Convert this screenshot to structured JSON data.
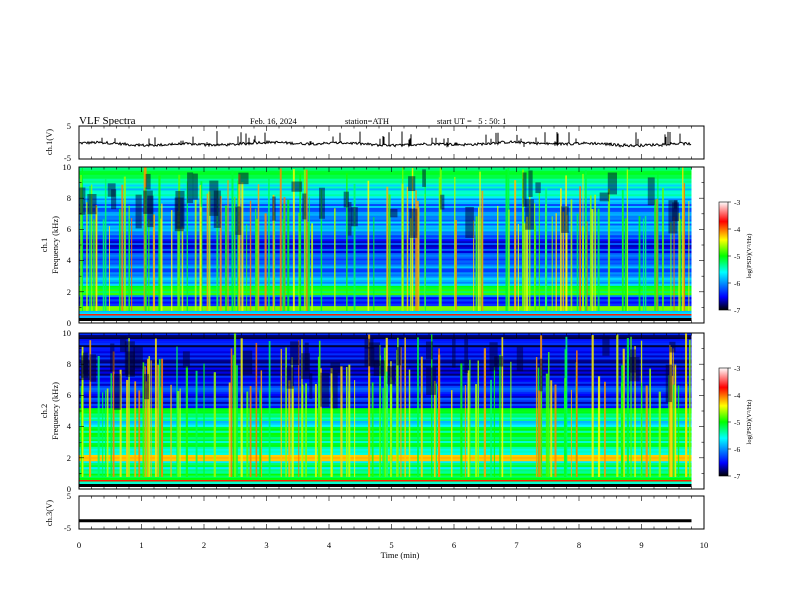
{
  "header": {
    "title": "VLF Spectra",
    "date": "Feb. 16, 2024",
    "station": "station=ATH",
    "start": "start UT =   5 : 50: 1"
  },
  "chart_data": [
    {
      "type": "line",
      "panel": "ch1-waveform",
      "ylabel": "ch.1(V)",
      "ylim": [
        -5,
        5
      ],
      "yticks": [
        "5",
        "-5"
      ],
      "xlim": [
        0,
        10
      ],
      "trace_color": "#000000",
      "x_end": 9.8
    },
    {
      "type": "heatmap",
      "panel": "ch1-spectrogram",
      "ylabel_channel": "ch.1",
      "ylabel": "Frequency (kHz)",
      "ylim": [
        0,
        10
      ],
      "yticks": [
        "0",
        "2",
        "4",
        "6",
        "8",
        "10"
      ],
      "xlim": [
        0,
        10
      ],
      "x_end": 9.8,
      "colorbar": {
        "label": "log(PSD)(V²/Hz)",
        "range": [
          -7,
          -3
        ],
        "ticks": [
          "-3",
          "-4",
          "-5",
          "-6",
          "-7"
        ]
      },
      "bands": [
        {
          "f": [
            0.0,
            0.3
          ],
          "level": -3.2
        },
        {
          "f": [
            0.3,
            0.8
          ],
          "level": -6.0
        },
        {
          "f": [
            0.8,
            1.1
          ],
          "level": -4.6
        },
        {
          "f": [
            1.1,
            1.8
          ],
          "level": -6.3
        },
        {
          "f": [
            1.8,
            2.4
          ],
          "level": -5.0
        },
        {
          "f": [
            2.4,
            3.0
          ],
          "level": -5.8
        },
        {
          "f": [
            3.0,
            4.5
          ],
          "level": -6.1
        },
        {
          "f": [
            4.5,
            5.5
          ],
          "level": -6.4
        },
        {
          "f": [
            5.5,
            8.0
          ],
          "level": -6.0
        },
        {
          "f": [
            8.0,
            9.0
          ],
          "level": -5.6
        },
        {
          "f": [
            9.0,
            10.0
          ],
          "level": -5.3
        }
      ]
    },
    {
      "type": "heatmap",
      "panel": "ch2-spectrogram",
      "ylabel_channel": "ch.2",
      "ylabel": "Frequency (kHz)",
      "ylim": [
        0,
        10
      ],
      "yticks": [
        "0",
        "2",
        "4",
        "6",
        "8",
        "10"
      ],
      "xlim": [
        0,
        10
      ],
      "x_end": 9.8,
      "colorbar": {
        "label": "log(PSD)(V²/Hz)",
        "range": [
          -7,
          -3
        ],
        "ticks": [
          "-3",
          "-4",
          "-5",
          "-6",
          "-7"
        ]
      },
      "bands": [
        {
          "f": [
            0.0,
            0.3
          ],
          "level": -3.2
        },
        {
          "f": [
            0.3,
            1.0
          ],
          "level": -5.2
        },
        {
          "f": [
            1.0,
            1.8
          ],
          "level": -5.4
        },
        {
          "f": [
            1.8,
            2.2
          ],
          "level": -4.1
        },
        {
          "f": [
            2.2,
            3.2
          ],
          "level": -5.3
        },
        {
          "f": [
            3.2,
            4.0
          ],
          "level": -5.2
        },
        {
          "f": [
            4.0,
            4.6
          ],
          "level": -5.6
        },
        {
          "f": [
            4.6,
            5.2
          ],
          "level": -5.3
        },
        {
          "f": [
            5.2,
            7.0
          ],
          "level": -6.4
        },
        {
          "f": [
            7.0,
            10.0
          ],
          "level": -6.6
        }
      ]
    },
    {
      "type": "line",
      "panel": "ch3-waveform",
      "ylabel": "ch.3(V)",
      "ylim": [
        -5,
        5
      ],
      "yticks": [
        "5",
        "-5"
      ],
      "xlim": [
        0,
        10
      ],
      "x_end": 9.8,
      "trace_level": -2.5,
      "xlabel": "Time (min)",
      "xticks": [
        "0",
        "1",
        "2",
        "3",
        "4",
        "5",
        "6",
        "7",
        "8",
        "9",
        "10"
      ]
    }
  ],
  "colormap": [
    "#000000",
    "#0000ff",
    "#00ffff",
    "#00ff00",
    "#ffff00",
    "#ff0000",
    "#ffffff"
  ]
}
